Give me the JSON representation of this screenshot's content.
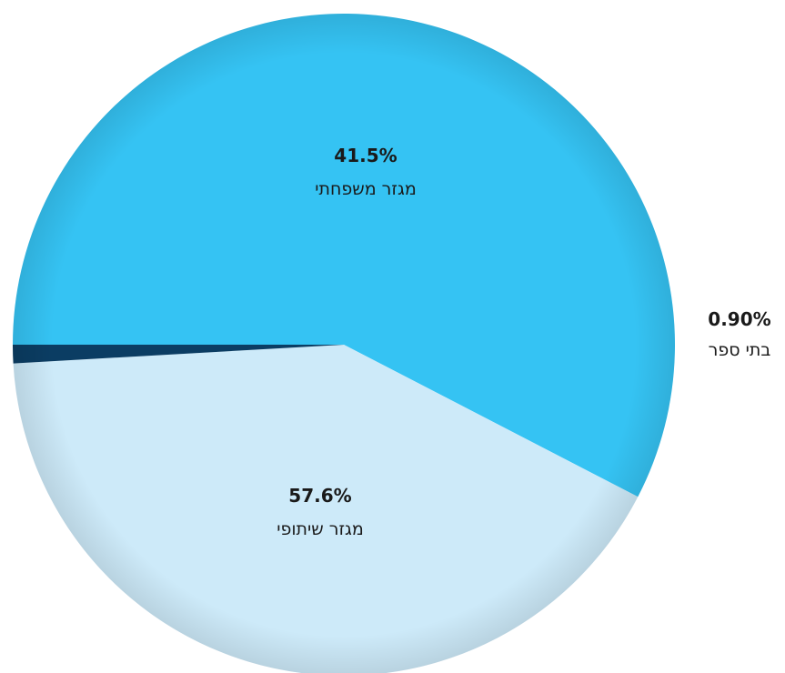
{
  "chart_data": {
    "type": "pie",
    "slices": [
      {
        "label": "מגזר שיתופי",
        "value": 57.6,
        "value_label": "57.6%",
        "color": "#35c3f3"
      },
      {
        "label": "מגזר משפחתי",
        "value": 41.5,
        "value_label": "41.5%",
        "color": "#cdeaf9"
      },
      {
        "label": "בתי ספר",
        "value": 0.9,
        "value_label": "0.90%",
        "color": "#0b3d63"
      }
    ]
  }
}
